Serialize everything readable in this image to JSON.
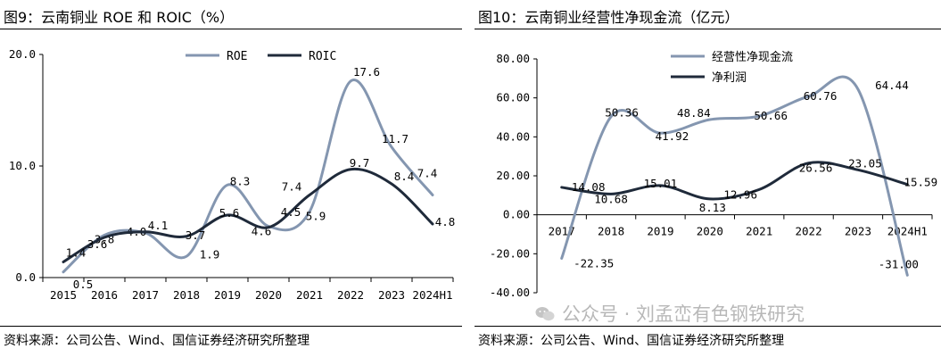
{
  "chart_data": [
    {
      "type": "line",
      "title": "图9：云南铜业 ROE 和 ROIC（%）",
      "source": "资料来源：公司公告、Wind、国信证券经济研究所整理",
      "categories": [
        "2015",
        "2016",
        "2017",
        "2018",
        "2019",
        "2020",
        "2021",
        "2022",
        "2023",
        "2024H1"
      ],
      "series": [
        {
          "name": "ROE",
          "color": "#8496b0",
          "values": [
            0.5,
            3.8,
            4.0,
            1.9,
            8.3,
            4.6,
            5.9,
            17.6,
            11.7,
            7.4
          ],
          "labels": [
            "0.5",
            "3.8",
            "4.0",
            "1.9",
            "8.3",
            "4.6",
            "5.9",
            "17.6",
            "11.7",
            "7.4"
          ]
        },
        {
          "name": "ROIC",
          "color": "#1f2a3a",
          "values": [
            1.4,
            3.6,
            4.1,
            3.7,
            5.6,
            4.5,
            7.4,
            9.7,
            8.4,
            4.8
          ],
          "labels": [
            "1.4",
            "3.6",
            "4.1",
            "3.7",
            "5.6",
            "4.5",
            "7.4",
            "9.7",
            "8.4",
            "4.8"
          ]
        }
      ],
      "ylim": [
        0,
        20
      ],
      "yticks": [
        "0.0",
        "10.0",
        "20.0"
      ],
      "legend": "top-center"
    },
    {
      "type": "line",
      "title": "图10：云南铜业经营性净现金流（亿元）",
      "source": "资料来源：公司公告、Wind、国信证券经济研究所整理",
      "categories": [
        "2017",
        "2018",
        "2019",
        "2020",
        "2021",
        "2022",
        "2023",
        "2024H1"
      ],
      "series": [
        {
          "name": "经营性净现金流",
          "color": "#8496b0",
          "values": [
            -22.35,
            50.36,
            41.92,
            48.84,
            50.66,
            60.76,
            64.44,
            -31.0
          ],
          "labels": [
            "-22.35",
            "50.36",
            "41.92",
            "48.84",
            "50.66",
            "60.76",
            "64.44",
            "-31.00"
          ]
        },
        {
          "name": "净利润",
          "color": "#1f2a3a",
          "values": [
            14.08,
            10.68,
            15.01,
            8.13,
            12.96,
            26.56,
            23.05,
            15.59
          ],
          "labels": [
            "14.08",
            "10.68",
            "15.01",
            "8.13",
            "12.96",
            "26.56",
            "23.05",
            "15.59"
          ]
        }
      ],
      "ylim": [
        -40,
        80
      ],
      "yticks": [
        "-40.00",
        "-20.00",
        "0.00",
        "20.00",
        "40.00",
        "60.00",
        "80.00"
      ],
      "legend": "top-left"
    }
  ],
  "watermark": "公众号 · 刘孟峦有色钢铁研究"
}
